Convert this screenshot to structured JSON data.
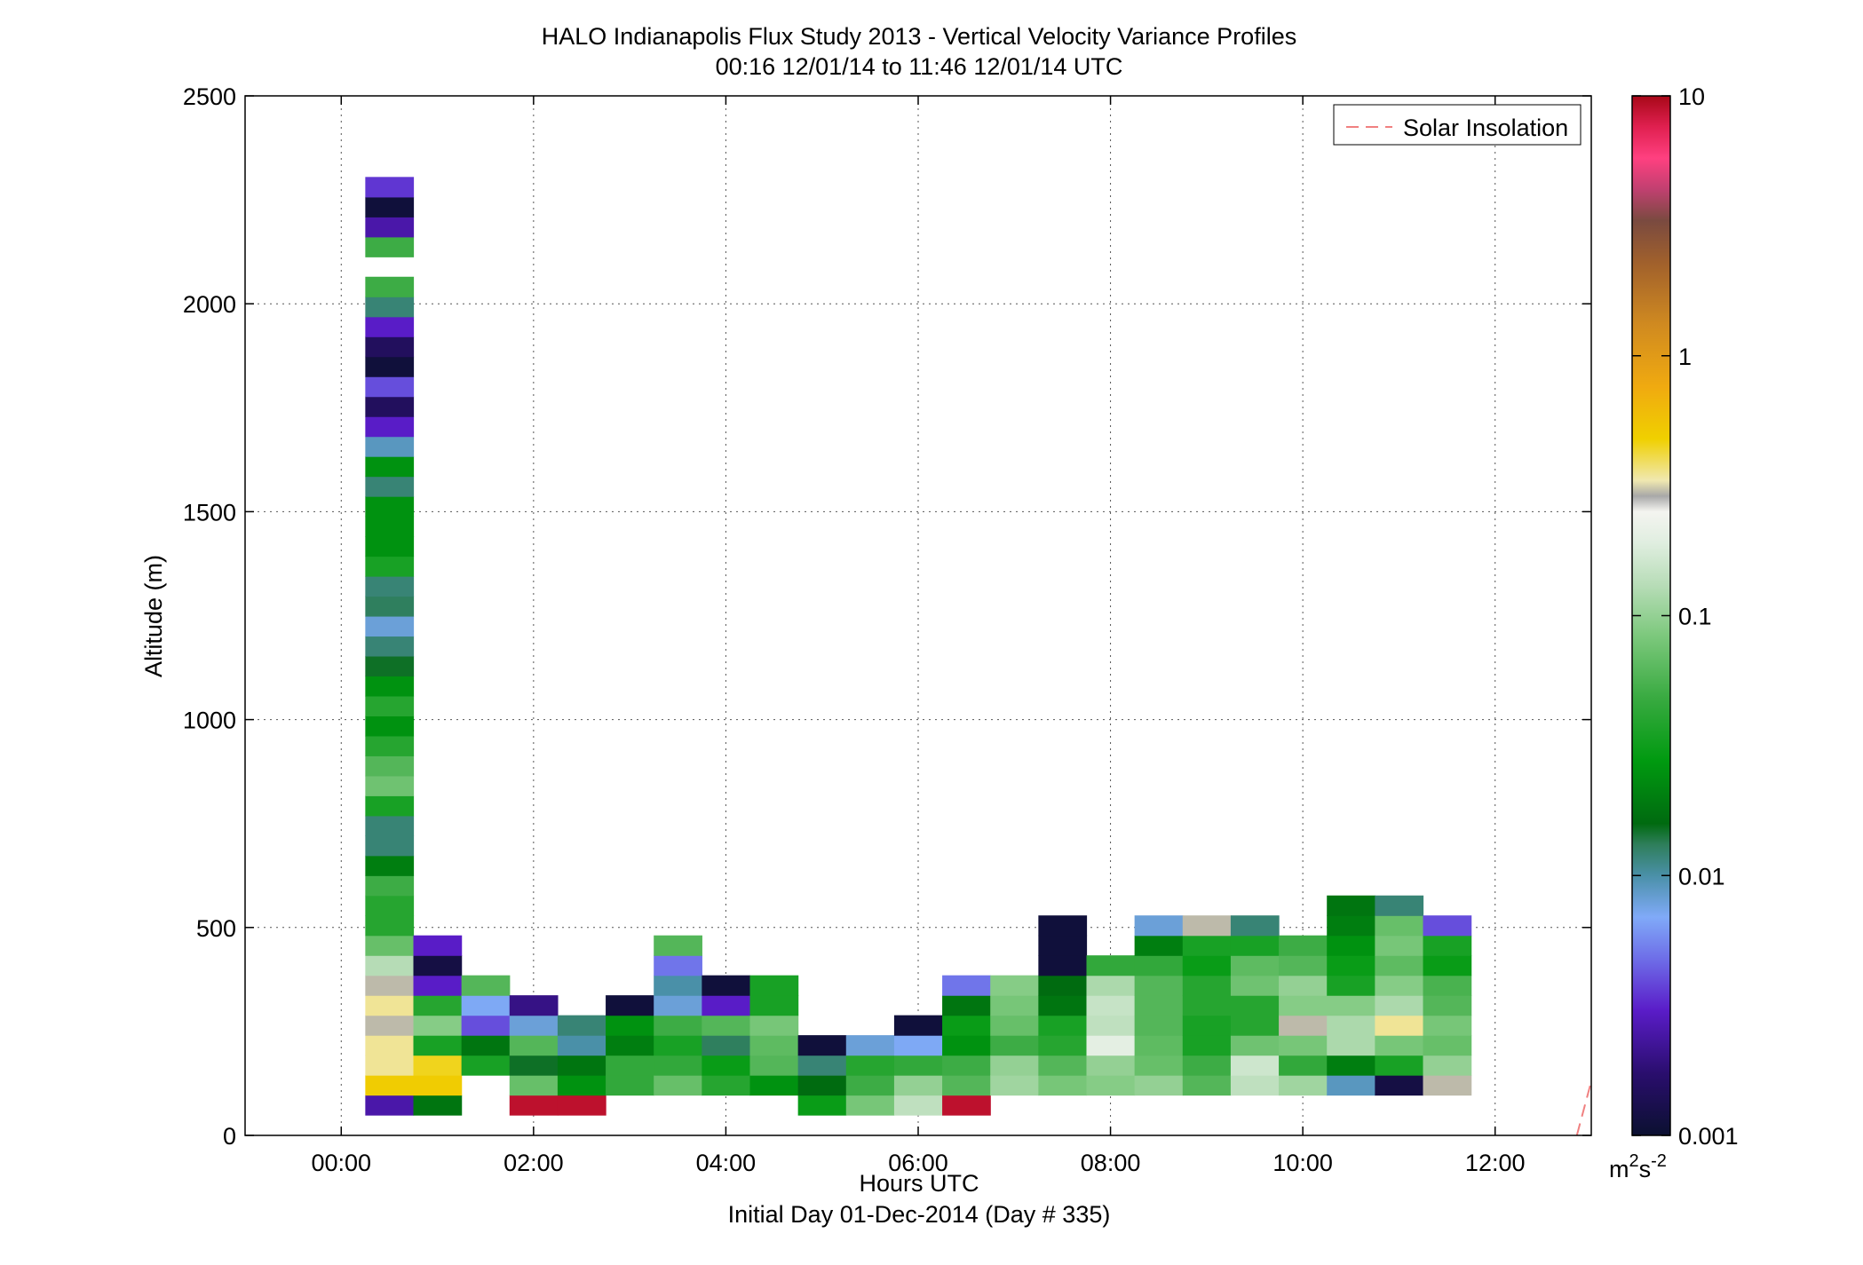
{
  "chart_data": {
    "type": "heatmap",
    "title": "HALO Indianapolis Flux Study 2013 - Vertical Velocity Variance Profiles",
    "subtitle": "00:16 12/01/14 to 11:46 12/01/14  UTC",
    "xlabel": "Hours UTC",
    "xlabel2": "Initial Day 01-Dec-2014 (Day # 335)",
    "ylabel": "Altitude (m)",
    "xlim": [
      -1,
      13
    ],
    "ylim": [
      0,
      2500
    ],
    "x_ticks": [
      0,
      2,
      4,
      6,
      8,
      10,
      12
    ],
    "x_tick_labels": [
      "00:00",
      "02:00",
      "04:00",
      "06:00",
      "08:00",
      "10:00",
      "12:00"
    ],
    "y_ticks": [
      0,
      500,
      1000,
      1500,
      2000,
      2500
    ],
    "y_tick_labels": [
      "0",
      "500",
      "1000",
      "1500",
      "2000",
      "2500"
    ],
    "grid": true,
    "legend": {
      "placement": "top-right",
      "entries": [
        "Solar Insolation"
      ]
    },
    "colorbar": {
      "scale": "log",
      "range": [
        0.001,
        10
      ],
      "ticks": [
        0.001,
        0.01,
        0.1,
        1,
        10
      ],
      "tick_labels": [
        "0.001",
        "0.01",
        "0.1",
        "1",
        "10"
      ],
      "unit": "m",
      "unit_exp1": "2",
      "unit_mid": "s",
      "unit_exp2": "-2"
    },
    "bin_width_hours": 0.5,
    "bin_height_m": 48,
    "columns": [
      {
        "x": 0.5,
        "cells": [
          [
            73,
            0.0025
          ],
          [
            121,
            0.5
          ],
          [
            169,
            0.35
          ],
          [
            217,
            0.35
          ],
          [
            265,
            0.3
          ],
          [
            313,
            0.35
          ],
          [
            361,
            0.3
          ],
          [
            409,
            0.13
          ],
          [
            457,
            0.07
          ],
          [
            505,
            0.04
          ],
          [
            553,
            0.04
          ],
          [
            601,
            0.05
          ],
          [
            649,
            0.02
          ],
          [
            697,
            0.012
          ],
          [
            745,
            0.012
          ],
          [
            793,
            0.035
          ],
          [
            841,
            0.075
          ],
          [
            889,
            0.06
          ],
          [
            937,
            0.04
          ],
          [
            985,
            0.025
          ],
          [
            1033,
            0.04
          ],
          [
            1081,
            0.025
          ],
          [
            1129,
            0.015
          ],
          [
            1177,
            0.012
          ],
          [
            1225,
            0.008
          ],
          [
            1273,
            0.013
          ],
          [
            1321,
            0.012
          ],
          [
            1369,
            0.035
          ],
          [
            1417,
            0.025
          ],
          [
            1465,
            0.025
          ],
          [
            1513,
            0.025
          ],
          [
            1561,
            0.012
          ],
          [
            1609,
            0.025
          ],
          [
            1657,
            0.009
          ],
          [
            1705,
            0.003
          ],
          [
            1753,
            0.0015
          ],
          [
            1801,
            0.004
          ],
          [
            1849,
            0.0011
          ],
          [
            1897,
            0.0015
          ],
          [
            1945,
            0.003
          ],
          [
            1993,
            0.012
          ],
          [
            2041,
            0.05
          ],
          [
            2137,
            0.05
          ],
          [
            2185,
            0.0025
          ],
          [
            2233,
            0.0011
          ],
          [
            2281,
            0.0035
          ]
        ]
      },
      {
        "x": 1.0,
        "cells": [
          [
            73,
            0.018
          ],
          [
            121,
            0.5
          ],
          [
            169,
            0.45
          ],
          [
            217,
            0.035
          ],
          [
            265,
            0.09
          ],
          [
            313,
            0.04
          ],
          [
            361,
            0.003
          ],
          [
            409,
            0.0012
          ],
          [
            457,
            0.003
          ]
        ]
      },
      {
        "x": 1.5,
        "cells": [
          [
            169,
            0.035
          ],
          [
            217,
            0.018
          ],
          [
            265,
            0.004
          ],
          [
            313,
            0.007
          ],
          [
            361,
            0.06
          ]
        ]
      },
      {
        "x": 2.0,
        "cells": [
          [
            73,
            9
          ],
          [
            121,
            0.07
          ],
          [
            169,
            0.015
          ],
          [
            217,
            0.06
          ],
          [
            265,
            0.008
          ],
          [
            313,
            0.002
          ]
        ]
      },
      {
        "x": 2.5,
        "cells": [
          [
            73,
            9
          ],
          [
            121,
            0.025
          ],
          [
            169,
            0.018
          ],
          [
            217,
            0.01
          ],
          [
            265,
            0.012
          ]
        ]
      },
      {
        "x": 3.0,
        "cells": [
          [
            121,
            0.045
          ],
          [
            169,
            0.045
          ],
          [
            217,
            0.02
          ],
          [
            265,
            0.025
          ],
          [
            313,
            0.0011
          ]
        ]
      },
      {
        "x": 3.5,
        "cells": [
          [
            121,
            0.07
          ],
          [
            169,
            0.045
          ],
          [
            217,
            0.035
          ],
          [
            265,
            0.05
          ],
          [
            313,
            0.008
          ],
          [
            361,
            0.01
          ],
          [
            409,
            0.005
          ],
          [
            457,
            0.06
          ]
        ]
      },
      {
        "x": 4.0,
        "cells": [
          [
            121,
            0.04
          ],
          [
            169,
            0.03
          ],
          [
            217,
            0.013
          ],
          [
            265,
            0.06
          ],
          [
            313,
            0.003
          ],
          [
            361,
            0.0011
          ]
        ]
      },
      {
        "x": 4.5,
        "cells": [
          [
            121,
            0.025
          ],
          [
            169,
            0.06
          ],
          [
            217,
            0.065
          ],
          [
            265,
            0.08
          ],
          [
            313,
            0.035
          ],
          [
            361,
            0.035
          ]
        ]
      },
      {
        "x": 5.0,
        "cells": [
          [
            73,
            0.03
          ],
          [
            121,
            0.016
          ],
          [
            169,
            0.012
          ],
          [
            217,
            0.0011
          ]
        ]
      },
      {
        "x": 5.5,
        "cells": [
          [
            73,
            0.08
          ],
          [
            121,
            0.05
          ],
          [
            169,
            0.04
          ],
          [
            217,
            0.008
          ]
        ]
      },
      {
        "x": 6.0,
        "cells": [
          [
            73,
            0.14
          ],
          [
            121,
            0.1
          ],
          [
            169,
            0.045
          ],
          [
            217,
            0.007
          ],
          [
            265,
            0.0011
          ]
        ]
      },
      {
        "x": 6.5,
        "cells": [
          [
            73,
            9
          ],
          [
            121,
            0.06
          ],
          [
            169,
            0.05
          ],
          [
            217,
            0.025
          ],
          [
            265,
            0.03
          ],
          [
            313,
            0.018
          ],
          [
            361,
            0.005
          ]
        ]
      },
      {
        "x": 7.0,
        "cells": [
          [
            121,
            0.11
          ],
          [
            169,
            0.1
          ],
          [
            217,
            0.05
          ],
          [
            265,
            0.07
          ],
          [
            313,
            0.08
          ],
          [
            361,
            0.09
          ]
        ]
      },
      {
        "x": 7.5,
        "cells": [
          [
            121,
            0.08
          ],
          [
            169,
            0.06
          ],
          [
            217,
            0.04
          ],
          [
            265,
            0.035
          ],
          [
            313,
            0.018
          ],
          [
            361,
            0.016
          ],
          [
            409,
            0.0011
          ],
          [
            457,
            0.0011
          ],
          [
            505,
            0.0011
          ]
        ]
      },
      {
        "x": 8.0,
        "cells": [
          [
            121,
            0.09
          ],
          [
            169,
            0.1
          ],
          [
            217,
            0.2
          ],
          [
            265,
            0.14
          ],
          [
            313,
            0.15
          ],
          [
            361,
            0.12
          ],
          [
            409,
            0.045
          ]
        ]
      },
      {
        "x": 8.5,
        "cells": [
          [
            121,
            0.1
          ],
          [
            169,
            0.07
          ],
          [
            217,
            0.065
          ],
          [
            265,
            0.06
          ],
          [
            313,
            0.06
          ],
          [
            361,
            0.06
          ],
          [
            409,
            0.045
          ],
          [
            457,
            0.02
          ],
          [
            505,
            0.008
          ]
        ]
      },
      {
        "x": 9.0,
        "cells": [
          [
            121,
            0.06
          ],
          [
            169,
            0.05
          ],
          [
            217,
            0.035
          ],
          [
            265,
            0.035
          ],
          [
            313,
            0.04
          ],
          [
            361,
            0.04
          ],
          [
            409,
            0.03
          ],
          [
            457,
            0.035
          ],
          [
            505,
            0.3
          ]
        ]
      },
      {
        "x": 9.5,
        "cells": [
          [
            121,
            0.14
          ],
          [
            169,
            0.16
          ],
          [
            217,
            0.075
          ],
          [
            265,
            0.04
          ],
          [
            313,
            0.04
          ],
          [
            361,
            0.075
          ],
          [
            409,
            0.065
          ],
          [
            457,
            0.035
          ],
          [
            505,
            0.012
          ]
        ]
      },
      {
        "x": 10.0,
        "cells": [
          [
            121,
            0.11
          ],
          [
            169,
            0.045
          ],
          [
            217,
            0.08
          ],
          [
            265,
            0.3
          ],
          [
            313,
            0.09
          ],
          [
            361,
            0.1
          ],
          [
            409,
            0.06
          ],
          [
            457,
            0.05
          ]
        ]
      },
      {
        "x": 10.5,
        "cells": [
          [
            121,
            0.009
          ],
          [
            169,
            0.02
          ],
          [
            217,
            0.12
          ],
          [
            265,
            0.12
          ],
          [
            313,
            0.09
          ],
          [
            361,
            0.035
          ],
          [
            409,
            0.03
          ],
          [
            457,
            0.025
          ],
          [
            505,
            0.02
          ],
          [
            553,
            0.018
          ]
        ]
      },
      {
        "x": 11.0,
        "cells": [
          [
            121,
            0.0012
          ],
          [
            169,
            0.035
          ],
          [
            217,
            0.08
          ],
          [
            265,
            0.35
          ],
          [
            313,
            0.12
          ],
          [
            361,
            0.09
          ],
          [
            409,
            0.065
          ],
          [
            457,
            0.08
          ],
          [
            505,
            0.07
          ],
          [
            553,
            0.012
          ]
        ]
      },
      {
        "x": 11.5,
        "cells": [
          [
            121,
            0.3
          ],
          [
            169,
            0.1
          ],
          [
            217,
            0.07
          ],
          [
            265,
            0.08
          ],
          [
            313,
            0.06
          ],
          [
            361,
            0.055
          ],
          [
            409,
            0.03
          ],
          [
            457,
            0.035
          ],
          [
            505,
            0.004
          ]
        ]
      }
    ],
    "solar_insolation_x": [
      12.85,
      13.0
    ],
    "solar_insolation_y": [
      0,
      130
    ]
  }
}
